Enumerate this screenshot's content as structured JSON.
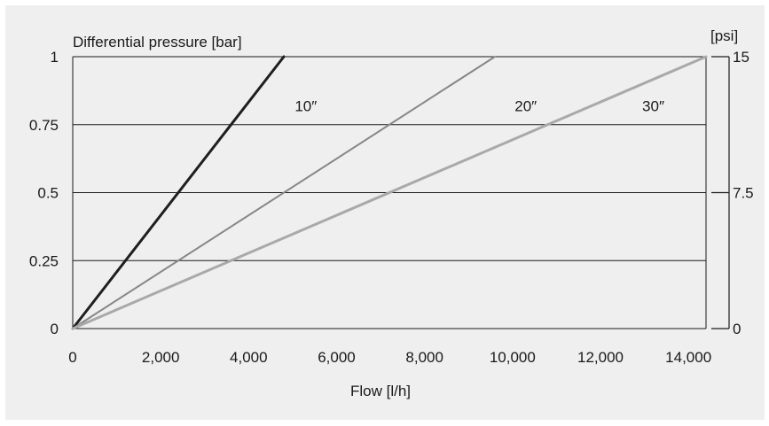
{
  "chart_data": {
    "type": "line",
    "ylabel": "Differential pressure [bar]",
    "ylabel_right": "[psi]",
    "xlabel": "Flow [l/h]",
    "xlim": [
      0,
      14400
    ],
    "ylim": [
      0,
      1
    ],
    "y2lim": [
      0,
      15
    ],
    "x_ticks": [
      0,
      2000,
      4000,
      6000,
      8000,
      10000,
      12000,
      14000
    ],
    "x_tick_labels": [
      "0",
      "2,000",
      "4,000",
      "6,000",
      "8,000",
      "10,000",
      "12,000",
      "14,000"
    ],
    "y_ticks": [
      0,
      0.25,
      0.5,
      0.75,
      1
    ],
    "y_tick_labels": [
      "0",
      "0.25",
      "0.5",
      "0.75",
      "1"
    ],
    "y2_ticks": [
      0,
      7.5,
      15
    ],
    "y2_tick_labels": [
      "0",
      "7.5",
      "15"
    ],
    "grid": "horizontal",
    "series": [
      {
        "name": "10″",
        "x": [
          0,
          4800
        ],
        "y": [
          0,
          1
        ],
        "color": "#1e1e1e"
      },
      {
        "name": "20″",
        "x": [
          0,
          9600
        ],
        "y": [
          0,
          1
        ],
        "color": "#878787"
      },
      {
        "name": "30″",
        "x": [
          0,
          14400
        ],
        "y": [
          0,
          1
        ],
        "color": "#a9a9a9"
      }
    ],
    "series_label_positions": [
      {
        "x": 5300,
        "y": 0.82
      },
      {
        "x": 10300,
        "y": 0.82
      },
      {
        "x": 13200,
        "y": 0.82
      }
    ]
  }
}
